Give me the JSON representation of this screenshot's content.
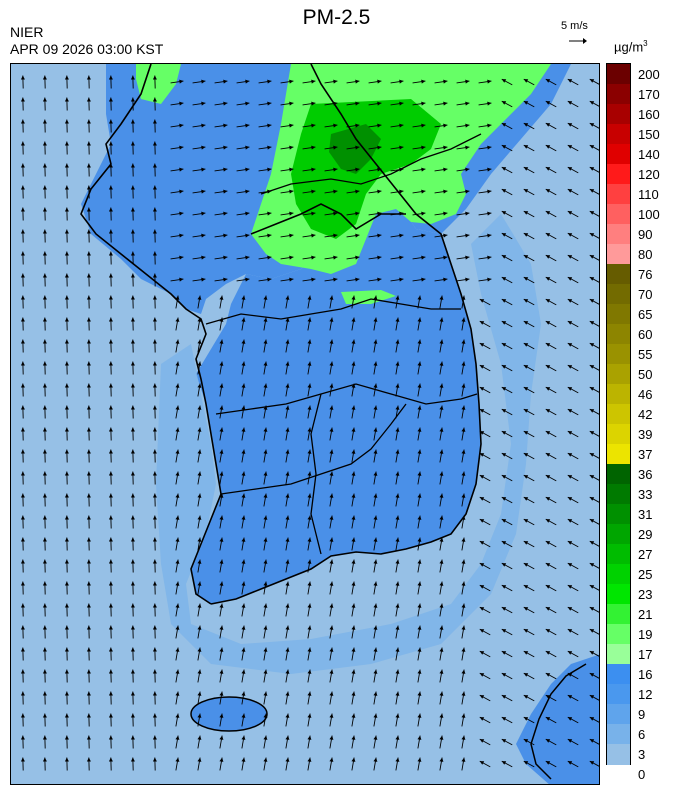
{
  "header": {
    "title": "PM-2.5",
    "agency": "NIER",
    "timestamp": "APR 09 2026 03:00 KST",
    "wind_reference": "5 m/s",
    "unit": "µg/m",
    "unit_exponent": "3"
  },
  "legend": {
    "levels": [
      {
        "label": "200",
        "color": "#6b0000"
      },
      {
        "label": "170",
        "color": "#8b0000"
      },
      {
        "label": "160",
        "color": "#a80000"
      },
      {
        "label": "150",
        "color": "#c80000"
      },
      {
        "label": "140",
        "color": "#e00000"
      },
      {
        "label": "120",
        "color": "#ff1a1a"
      },
      {
        "label": "110",
        "color": "#ff4040"
      },
      {
        "label": "100",
        "color": "#ff6060"
      },
      {
        "label": "90",
        "color": "#ff7f7f"
      },
      {
        "label": "80",
        "color": "#ff9a9a"
      },
      {
        "label": "76",
        "color": "#665c00"
      },
      {
        "label": "70",
        "color": "#736b00"
      },
      {
        "label": "65",
        "color": "#807800"
      },
      {
        "label": "60",
        "color": "#8d8500"
      },
      {
        "label": "55",
        "color": "#9a9200"
      },
      {
        "label": "50",
        "color": "#aaa200"
      },
      {
        "label": "46",
        "color": "#bcb400"
      },
      {
        "label": "42",
        "color": "#cdc500"
      },
      {
        "label": "39",
        "color": "#dcd400"
      },
      {
        "label": "37",
        "color": "#ece400"
      },
      {
        "label": "36",
        "color": "#006400"
      },
      {
        "label": "33",
        "color": "#007a00"
      },
      {
        "label": "31",
        "color": "#009000"
      },
      {
        "label": "29",
        "color": "#00a600"
      },
      {
        "label": "27",
        "color": "#00bc00"
      },
      {
        "label": "25",
        "color": "#00d200"
      },
      {
        "label": "23",
        "color": "#00e600"
      },
      {
        "label": "21",
        "color": "#33f233"
      },
      {
        "label": "19",
        "color": "#66ff66"
      },
      {
        "label": "17",
        "color": "#99ff99"
      },
      {
        "label": "16",
        "color": "#3c8ff0"
      },
      {
        "label": "12",
        "color": "#4a98ee"
      },
      {
        "label": "9",
        "color": "#5fa4ec"
      },
      {
        "label": "6",
        "color": "#78b2ea"
      },
      {
        "label": "3",
        "color": "#96c0e6"
      },
      {
        "label": "0",
        "color": "#96c0e6"
      }
    ]
  },
  "map": {
    "sea_color": "#96c0e6",
    "land_color": "#4a90e8",
    "elevated_color": "#66ff66",
    "high_color": "#00cc00",
    "peak_color": "#009000",
    "wind_direction": "north-northwest",
    "wind_regions": "offshore west and south: northward; inland north: eastward; east sea: westward"
  }
}
